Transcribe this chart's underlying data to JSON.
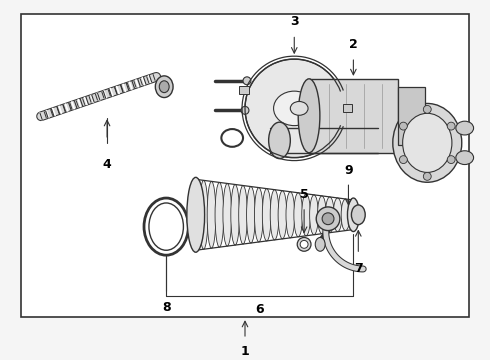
{
  "background_color": "#f5f5f5",
  "border_color": "#333333",
  "line_color": "#333333",
  "label_color": "#000000",
  "fig_width": 4.9,
  "fig_height": 3.6,
  "dpi": 100
}
